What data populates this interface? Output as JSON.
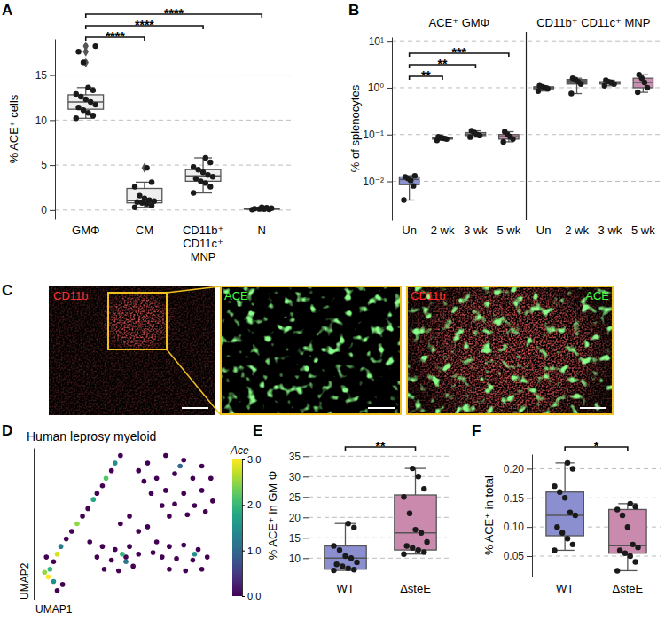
{
  "chart_data": [
    {
      "type": "box",
      "label": "A",
      "ylabel": "% ACE⁺ cells",
      "grid": true,
      "ylim": [
        -1,
        19
      ],
      "yticks": [
        0,
        5,
        10,
        15
      ],
      "series": [
        {
          "name": "GMΦ",
          "color": "#eeeeee",
          "points": [
            10.2,
            10.5,
            10.8,
            11.1,
            11.4,
            11.7,
            12.0,
            12.3,
            12.6,
            12.9,
            13.3,
            13.6,
            16.4,
            17.6,
            18.2
          ],
          "box": {
            "low": 10.2,
            "q1": 11.2,
            "median": 12.0,
            "q3": 12.8,
            "high": 13.6
          }
        },
        {
          "name": "CM",
          "color": "#eeeeee",
          "points": [
            0.3,
            0.5,
            0.7,
            0.8,
            0.9,
            1.0,
            1.1,
            1.3,
            1.6,
            2.6,
            3.1,
            4.7
          ],
          "box": {
            "low": 0.3,
            "q1": 0.8,
            "median": 1.05,
            "q3": 2.4,
            "high": 3.1
          }
        },
        {
          "name": "CD11b⁺\nCD11c⁺\nMNP",
          "color": "#eeeeee",
          "points": [
            1.9,
            2.6,
            3.0,
            3.2,
            3.5,
            3.7,
            3.9,
            4.2,
            4.5,
            4.8,
            5.3,
            5.8
          ],
          "box": {
            "low": 1.9,
            "q1": 3.2,
            "median": 3.8,
            "q3": 4.5,
            "high": 5.8
          }
        },
        {
          "name": "N",
          "color": "#eeeeee",
          "points": [
            0.05,
            0.08,
            0.1,
            0.12,
            0.15,
            0.2,
            0.25,
            0.3
          ],
          "box": {
            "low": 0.05,
            "q1": 0.09,
            "median": 0.13,
            "q3": 0.21,
            "high": 0.3
          }
        }
      ],
      "significance": [
        {
          "from": 0,
          "to": 1,
          "text": "****"
        },
        {
          "from": 0,
          "to": 2,
          "text": "****"
        },
        {
          "from": 0,
          "to": 3,
          "text": "****"
        }
      ]
    },
    {
      "type": "box",
      "label": "B",
      "ylabel": "% of splenocytes",
      "grid": true,
      "log": "y",
      "ylim": [
        0.0015,
        12
      ],
      "yticks": [
        {
          "value": 0.01,
          "label": "10⁻²"
        },
        {
          "value": 0.1,
          "label": "10⁻¹"
        },
        {
          "value": 1,
          "label": "10⁰"
        },
        {
          "value": 10,
          "label": "10¹"
        }
      ],
      "groups": [
        {
          "title": "ACE⁺ GMΦ",
          "series": [
            {
              "name": "Un",
              "color": "#8a93cf",
              "points": [
                0.004,
                0.008,
                0.0105,
                0.0115,
                0.0125,
                0.0132
              ],
              "box": {
                "low": 0.004,
                "q1": 0.0085,
                "median": 0.011,
                "q3": 0.0125,
                "high": 0.0132
              }
            },
            {
              "name": "2 wk",
              "color": "#5f5f5f",
              "points": [
                0.075,
                0.08,
                0.083,
                0.087,
                0.09
              ],
              "box": {
                "low": 0.075,
                "q1": 0.08,
                "median": 0.083,
                "q3": 0.087,
                "high": 0.09
              }
            },
            {
              "name": "3 wk",
              "color": "#9a9a9a",
              "points": [
                0.088,
                0.095,
                0.1,
                0.11,
                0.12
              ],
              "box": {
                "low": 0.088,
                "q1": 0.095,
                "median": 0.1,
                "q3": 0.11,
                "high": 0.12
              }
            },
            {
              "name": "5 wk",
              "color": "#c98fb0",
              "points": [
                0.07,
                0.08,
                0.09,
                0.1,
                0.115
              ],
              "box": {
                "low": 0.07,
                "q1": 0.08,
                "median": 0.09,
                "q3": 0.1,
                "high": 0.115
              }
            }
          ],
          "significance": [
            {
              "from": 0,
              "to": 1,
              "text": "**"
            },
            {
              "from": 0,
              "to": 2,
              "text": "**"
            },
            {
              "from": 0,
              "to": 3,
              "text": "***"
            }
          ]
        },
        {
          "title": "CD11b⁺ CD11c⁺ MNP",
          "series": [
            {
              "name": "Un",
              "color": "#8a93cf",
              "points": [
                0.85,
                0.95,
                1.0,
                1.05,
                1.1
              ],
              "box": {
                "low": 0.85,
                "q1": 0.95,
                "median": 1.0,
                "q3": 1.05,
                "high": 1.1
              }
            },
            {
              "name": "2 wk",
              "color": "#5f5f5f",
              "points": [
                0.75,
                1.2,
                1.35,
                1.5,
                1.6
              ],
              "box": {
                "low": 0.75,
                "q1": 1.2,
                "median": 1.35,
                "q3": 1.5,
                "high": 1.6
              }
            },
            {
              "name": "3 wk",
              "color": "#9a9a9a",
              "points": [
                1.1,
                1.2,
                1.3,
                1.35,
                1.45
              ],
              "box": {
                "low": 1.1,
                "q1": 1.2,
                "median": 1.3,
                "q3": 1.35,
                "high": 1.45
              }
            },
            {
              "name": "5 wk",
              "color": "#c98fb0",
              "points": [
                0.8,
                1.0,
                1.3,
                1.6,
                1.9
              ],
              "box": {
                "low": 0.8,
                "q1": 1.0,
                "median": 1.3,
                "q3": 1.6,
                "high": 1.9
              }
            }
          ]
        }
      ]
    },
    {
      "type": "image",
      "label": "C",
      "panels": [
        {
          "texts": [
            {
              "text": "CD11b",
              "color": "#ff3030"
            }
          ]
        },
        {
          "texts": [
            {
              "text": "ACE",
              "color": "#3cff3c"
            }
          ]
        },
        {
          "texts": [
            {
              "text": "CD11b",
              "color": "#ff3030"
            },
            {
              "text": "ACE",
              "color": "#3cff3c"
            }
          ]
        }
      ]
    },
    {
      "type": "scatter",
      "label": "D",
      "title": "Human leprosy myeloid",
      "xlabel": "UMAP1",
      "ylabel": "UMAP2",
      "tick_labels": false,
      "xlim": [
        -0.3,
        10
      ],
      "ylim": [
        0,
        10
      ],
      "x": [
        4.5,
        4.2,
        4.0,
        3.7,
        3.5,
        3.2,
        3.0,
        2.7,
        2.4,
        2.1,
        1.8,
        1.5,
        1.2,
        1.0,
        0.8,
        0.6,
        0.5,
        0.8,
        1.3,
        0.3,
        1.0,
        0.4,
        6,
        7,
        8,
        9,
        9.5,
        8.5,
        7.5,
        6.5,
        5.8,
        6.2,
        7,
        8,
        9,
        9.6,
        8.6,
        7.5,
        6.8,
        7.2,
        8.2,
        9.2,
        7.8,
        5.5,
        2.8,
        3.5,
        4.2,
        5,
        3.2,
        4,
        4.8,
        5.5,
        3.6,
        4.4,
        5.2,
        4.8,
        4.6,
        6.5,
        7.2,
        8,
        8.8,
        6.8,
        7.6,
        8.5,
        9.3,
        7.2,
        8.1,
        9,
        6.3,
        8.6,
        5.5,
        6,
        4.5,
        5
      ],
      "y": [
        9.5,
        9.0,
        8.5,
        8.0,
        7.5,
        7.0,
        6.6,
        6.0,
        5.5,
        5.0,
        4.5,
        4.0,
        3.5,
        3.0,
        2.5,
        2.0,
        1.5,
        1.2,
        1.0,
        1.8,
        0.6,
        2.8,
        9,
        9.5,
        9.2,
        8.8,
        8,
        8,
        8.3,
        8,
        7.8,
        7,
        7.2,
        7,
        7.2,
        6.5,
        6.2,
        6.3,
        6.2,
        5.5,
        5.6,
        5.8,
        8.8,
        8.5,
        3.8,
        3.5,
        3.3,
        3.5,
        2.8,
        2.6,
        2.8,
        3,
        2,
        1.9,
        2.2,
        2.5,
        3.0,
        3.8,
        3.5,
        3.6,
        3.3,
        2.8,
        2.7,
        2.6,
        2.8,
        2,
        1.9,
        2,
        3.1,
        3.0,
        4.5,
        4.8,
        5,
        5.5
      ],
      "values": [
        0,
        1.5,
        0,
        2.2,
        0,
        0,
        1.8,
        0,
        0,
        2.5,
        0,
        0,
        1.2,
        2.8,
        0,
        2.0,
        3.0,
        1.5,
        0,
        2.5,
        0,
        0,
        0,
        0,
        0,
        0,
        0,
        0,
        0,
        0,
        0,
        0,
        0,
        0,
        0,
        0,
        0,
        0,
        0,
        0,
        0,
        0,
        1.0,
        0,
        0,
        0,
        0,
        0,
        0,
        0,
        0,
        0,
        0,
        0,
        0,
        1.2,
        2.0,
        0,
        0,
        0,
        0,
        0,
        0,
        0,
        0,
        0,
        0,
        0,
        0,
        1.5,
        0,
        0,
        0,
        0
      ],
      "colorbar": {
        "label": "Ace",
        "range": [
          0,
          3
        ],
        "ticks": [
          {
            "value": 0,
            "label": "0.0"
          },
          {
            "value": 1,
            "label": "1.0"
          },
          {
            "value": 2,
            "label": "2.0"
          },
          {
            "value": 3,
            "label": "3.0"
          }
        ]
      }
    },
    {
      "type": "box",
      "label": "E",
      "ylabel": "% ACE⁺ in GM Φ",
      "grid": true,
      "ylim": [
        5.5,
        35.5
      ],
      "yticks": [
        10,
        15,
        20,
        25,
        30,
        35
      ],
      "series": [
        {
          "name": "WT",
          "color": "#8b8fd0",
          "points": [
            7,
            7.2,
            7.5,
            8,
            8.5,
            9,
            10,
            10.5,
            12,
            13,
            17.5,
            18.5
          ],
          "box": {
            "low": 7,
            "q1": 7.3,
            "median": 10,
            "q3": 13,
            "high": 18.5
          }
        },
        {
          "name": "ΔsteE",
          "color": "#c98aae",
          "points": [
            11,
            11.5,
            12,
            12.5,
            13,
            14,
            16.2,
            17,
            21,
            25,
            27,
            30,
            32
          ],
          "box": {
            "low": 11,
            "q1": 12,
            "median": 16.2,
            "q3": 25.5,
            "high": 32
          }
        }
      ],
      "significance": [
        {
          "from": 0,
          "to": 1,
          "text": "**"
        }
      ]
    },
    {
      "type": "box",
      "label": "F",
      "ylabel": "% ACE⁺ in total",
      "grid": true,
      "ylim": [
        0.015,
        0.225
      ],
      "yticks": [
        0.05,
        {
          "value": 0.1,
          "label": "0.10"
        },
        0.15,
        {
          "value": 0.2,
          "label": "0.20"
        }
      ],
      "series": [
        {
          "name": "WT",
          "color": "#8b8fd0",
          "points": [
            0.06,
            0.07,
            0.08,
            0.09,
            0.1,
            0.12,
            0.125,
            0.15,
            0.16,
            0.17,
            0.2,
            0.21
          ],
          "box": {
            "low": 0.06,
            "q1": 0.085,
            "median": 0.12,
            "q3": 0.16,
            "high": 0.21
          }
        },
        {
          "name": "ΔsteE",
          "color": "#c98aae",
          "points": [
            0.025,
            0.04,
            0.05,
            0.055,
            0.06,
            0.065,
            0.07,
            0.1,
            0.12,
            0.13,
            0.135,
            0.14
          ],
          "box": {
            "low": 0.025,
            "q1": 0.055,
            "median": 0.068,
            "q3": 0.13,
            "high": 0.14
          }
        }
      ],
      "significance": [
        {
          "from": 0,
          "to": 1,
          "text": "*"
        }
      ]
    }
  ]
}
